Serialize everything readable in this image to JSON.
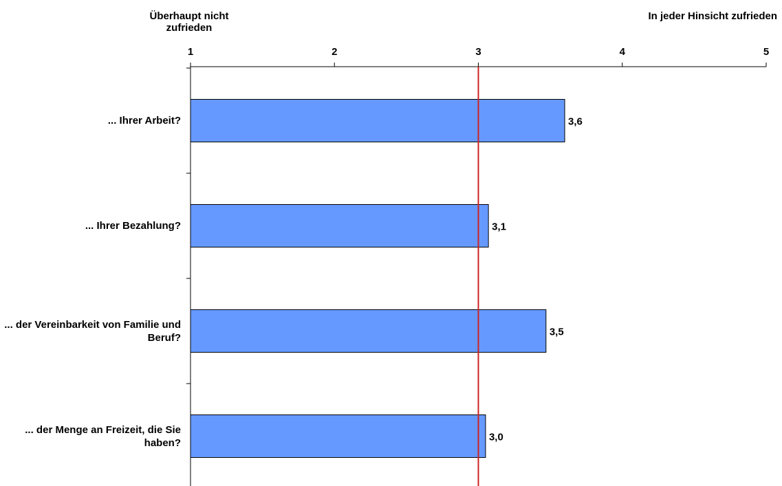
{
  "chart_data": {
    "type": "bar",
    "orientation": "horizontal",
    "scale_labels": {
      "min": "Überhaupt nicht zufrieden",
      "max": "In jeder Hinsicht zufrieden"
    },
    "xlim": [
      1,
      5
    ],
    "xticks": [
      "1",
      "2",
      "3",
      "4",
      "5"
    ],
    "reference_line": 3,
    "categories": [
      "... Ihrer Arbeit?",
      "... Ihrer Bezahlung?",
      "... der Vereinbarkeit von Familie und Beruf?",
      "... der Menge an Freizeit, die Sie haben?"
    ],
    "values": [
      3.6,
      3.07,
      3.47,
      3.05
    ],
    "value_labels": [
      "3,6",
      "3,1",
      "3,5",
      "3,0"
    ],
    "bar_color": "#6699ff",
    "reference_line_color": "#cc2222",
    "grid": false
  }
}
